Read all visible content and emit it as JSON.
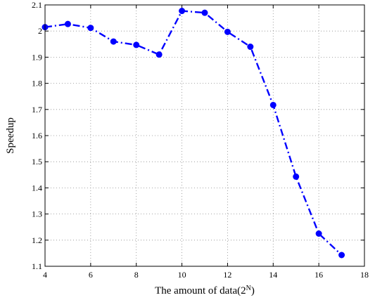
{
  "chart_data": {
    "type": "line",
    "xlabel_main": "The amount of data(2",
    "xlabel_sup": "N",
    "xlabel_close": ")",
    "ylabel": "Speedup",
    "xlim": [
      4,
      18
    ],
    "ylim": [
      1.1,
      2.1
    ],
    "grid": true,
    "x_ticks": [
      4,
      6,
      8,
      10,
      12,
      14,
      16,
      18
    ],
    "x_tick_labels": [
      "4",
      "6",
      "8",
      "10",
      "12",
      "14",
      "16",
      "18"
    ],
    "y_ticks": [
      1.1,
      1.2,
      1.3,
      1.4,
      1.5,
      1.6,
      1.7,
      1.8,
      1.9,
      2.0,
      2.1
    ],
    "y_tick_labels": [
      "1.1",
      "1.2",
      "1.3",
      "1.4",
      "1.5",
      "1.6",
      "1.7",
      "1.8",
      "1.9",
      "2",
      "2.1"
    ],
    "series": [
      {
        "x": [
          4,
          5,
          6,
          7,
          8,
          9,
          10,
          11,
          12,
          13,
          14,
          15,
          16,
          17
        ],
        "values": [
          2.015,
          2.027,
          2.012,
          1.96,
          1.947,
          1.91,
          2.077,
          2.07,
          1.997,
          1.94,
          1.717,
          1.443,
          1.225,
          1.143
        ],
        "color": "#0000ff",
        "line_style": "dash-dot",
        "marker": "circle"
      }
    ]
  }
}
